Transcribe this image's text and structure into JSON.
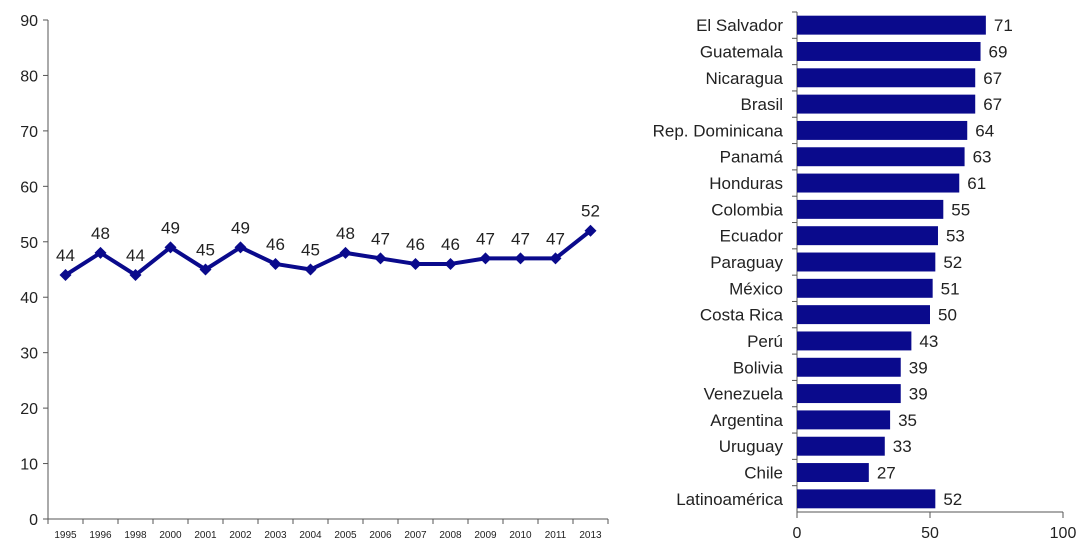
{
  "chart_data": [
    {
      "type": "line",
      "x": [
        "1995",
        "1996",
        "1998",
        "2000",
        "2001",
        "2002",
        "2003",
        "2004",
        "2005",
        "2006",
        "2007",
        "2008",
        "2009",
        "2010",
        "2011",
        "2013"
      ],
      "series": [
        {
          "values": [
            44,
            48,
            44,
            49,
            45,
            49,
            46,
            45,
            48,
            47,
            46,
            46,
            47,
            47,
            47,
            52
          ]
        }
      ],
      "ylim": [
        0,
        90
      ],
      "yticks": [
        0,
        10,
        20,
        30,
        40,
        50,
        60,
        70,
        80,
        90
      ],
      "data_labels": true,
      "grid": false,
      "color": "#0a0a8c",
      "marker": "diamond"
    },
    {
      "type": "bar",
      "orientation": "horizontal",
      "categories": [
        "El Salvador",
        "Guatemala",
        "Nicaragua",
        "Brasil",
        "Rep. Dominicana",
        "Panamá",
        "Honduras",
        "Colombia",
        "Ecuador",
        "Paraguay",
        "México",
        "Costa Rica",
        "Perú",
        "Bolivia",
        "Venezuela",
        "Argentina",
        "Uruguay",
        "Chile",
        "Latinoamérica"
      ],
      "values": [
        71,
        69,
        67,
        67,
        64,
        63,
        61,
        55,
        53,
        52,
        51,
        50,
        43,
        39,
        39,
        35,
        33,
        27,
        52
      ],
      "xlim": [
        0,
        100
      ],
      "xticks": [
        0,
        50,
        100
      ],
      "data_labels": true,
      "grid": false,
      "color": "#0a0a8c"
    }
  ]
}
